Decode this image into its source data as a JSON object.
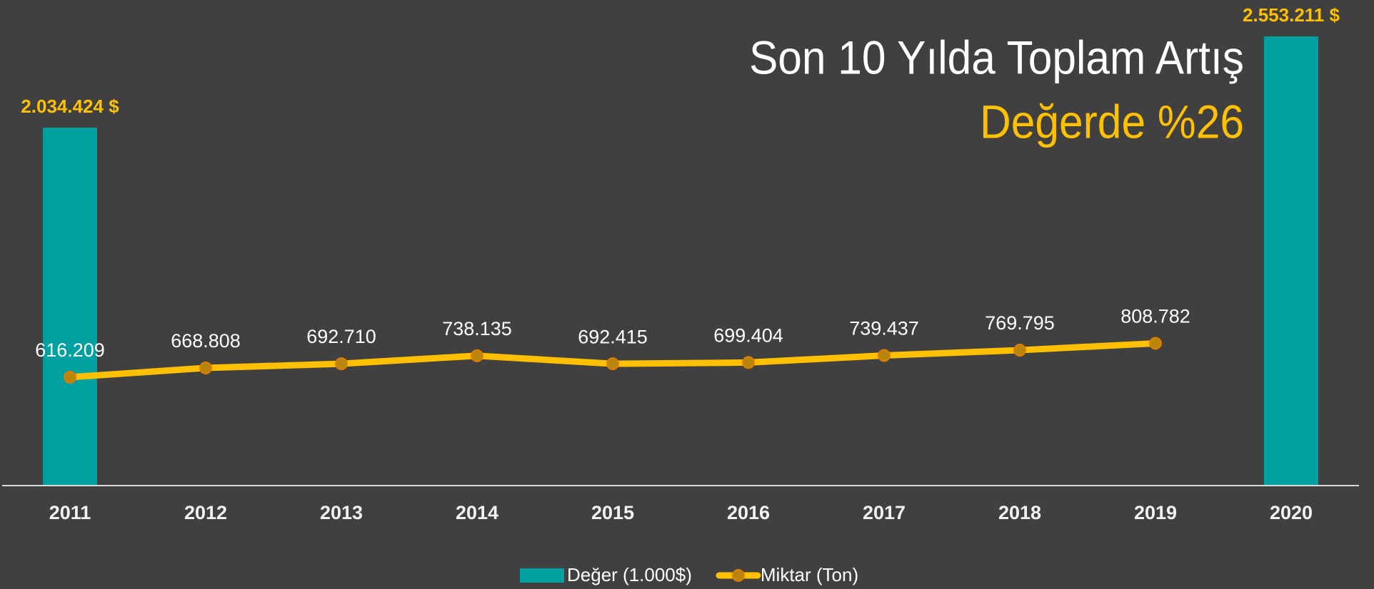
{
  "chart_data": {
    "type": "bar-line",
    "title": "Son 10 Yılda Toplam Artış",
    "subtitle": "Değerde %26",
    "categories": [
      "2011",
      "2012",
      "2013",
      "2014",
      "2015",
      "2016",
      "2017",
      "2018",
      "2019",
      "2020"
    ],
    "ylim": [
      0,
      2760000
    ],
    "series": [
      {
        "name": "Değer (1.000$)",
        "type": "bar",
        "color": "#00a0a0",
        "values": [
          2034424,
          null,
          null,
          null,
          null,
          null,
          null,
          null,
          null,
          2553211
        ],
        "value_labels": [
          "2.034.424 $",
          null,
          null,
          null,
          null,
          null,
          null,
          null,
          null,
          "2.553.211 $"
        ]
      },
      {
        "name": "Miktar (Ton)",
        "type": "line",
        "color": "#ffc000",
        "values": [
          616209,
          668808,
          692710,
          738135,
          692415,
          699404,
          739437,
          769795,
          808782,
          null
        ],
        "value_labels": [
          "616.209",
          "668.808",
          "692.710",
          "738.135",
          "692.415",
          "699.404",
          "739.437",
          "769.795",
          "808.782",
          null
        ]
      }
    ]
  }
}
